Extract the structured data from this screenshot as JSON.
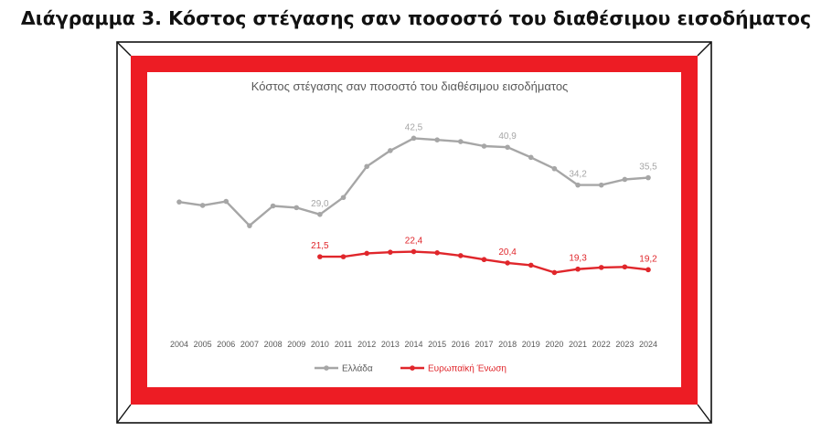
{
  "page": {
    "heading": "Διάγραμμα 3. Κόστος στέγασης σαν ποσοστό του διαθέσιμου εισοδήματος"
  },
  "colors": {
    "frame_red": "#ed1c24",
    "greece_series": "#a6a6a6",
    "eu_series": "#e0262b",
    "axis_text": "#595959"
  },
  "chart_data": {
    "type": "line",
    "title": "Κόστος στέγασης σαν ποσοστό του διαθέσιμου εισοδήματος",
    "xlabel": "",
    "ylabel": "",
    "grid": false,
    "legend_position": "bottom",
    "categories": [
      "2004",
      "2005",
      "2006",
      "2007",
      "2008",
      "2009",
      "2010",
      "2011",
      "2012",
      "2013",
      "2014",
      "2015",
      "2016",
      "2017",
      "2018",
      "2019",
      "2020",
      "2021",
      "2022",
      "2023",
      "2024"
    ],
    "ylim": [
      0,
      50
    ],
    "series": [
      {
        "name": "Ελλάδα",
        "color": "#a6a6a6",
        "values": [
          31.2,
          30.6,
          31.3,
          27.0,
          30.5,
          30.2,
          29.0,
          32.0,
          37.5,
          40.3,
          42.5,
          42.2,
          41.9,
          41.1,
          40.9,
          39.1,
          37.1,
          34.2,
          34.2,
          35.2,
          35.5
        ],
        "labels": {
          "2010": "29,0",
          "2014": "42,5",
          "2018": "40,9",
          "2021": "34,2",
          "2024": "35,5"
        }
      },
      {
        "name": "Ευρωπαϊκή Ένωση",
        "color": "#e0262b",
        "values": [
          null,
          null,
          null,
          null,
          null,
          null,
          21.5,
          21.5,
          22.1,
          22.3,
          22.4,
          22.2,
          21.7,
          21.0,
          20.4,
          20.0,
          18.7,
          19.3,
          19.6,
          19.7,
          19.2
        ],
        "labels": {
          "2010": "21,5",
          "2014": "22,4",
          "2018": "20,4",
          "2021": "19,3",
          "2024": "19,2"
        }
      }
    ]
  }
}
